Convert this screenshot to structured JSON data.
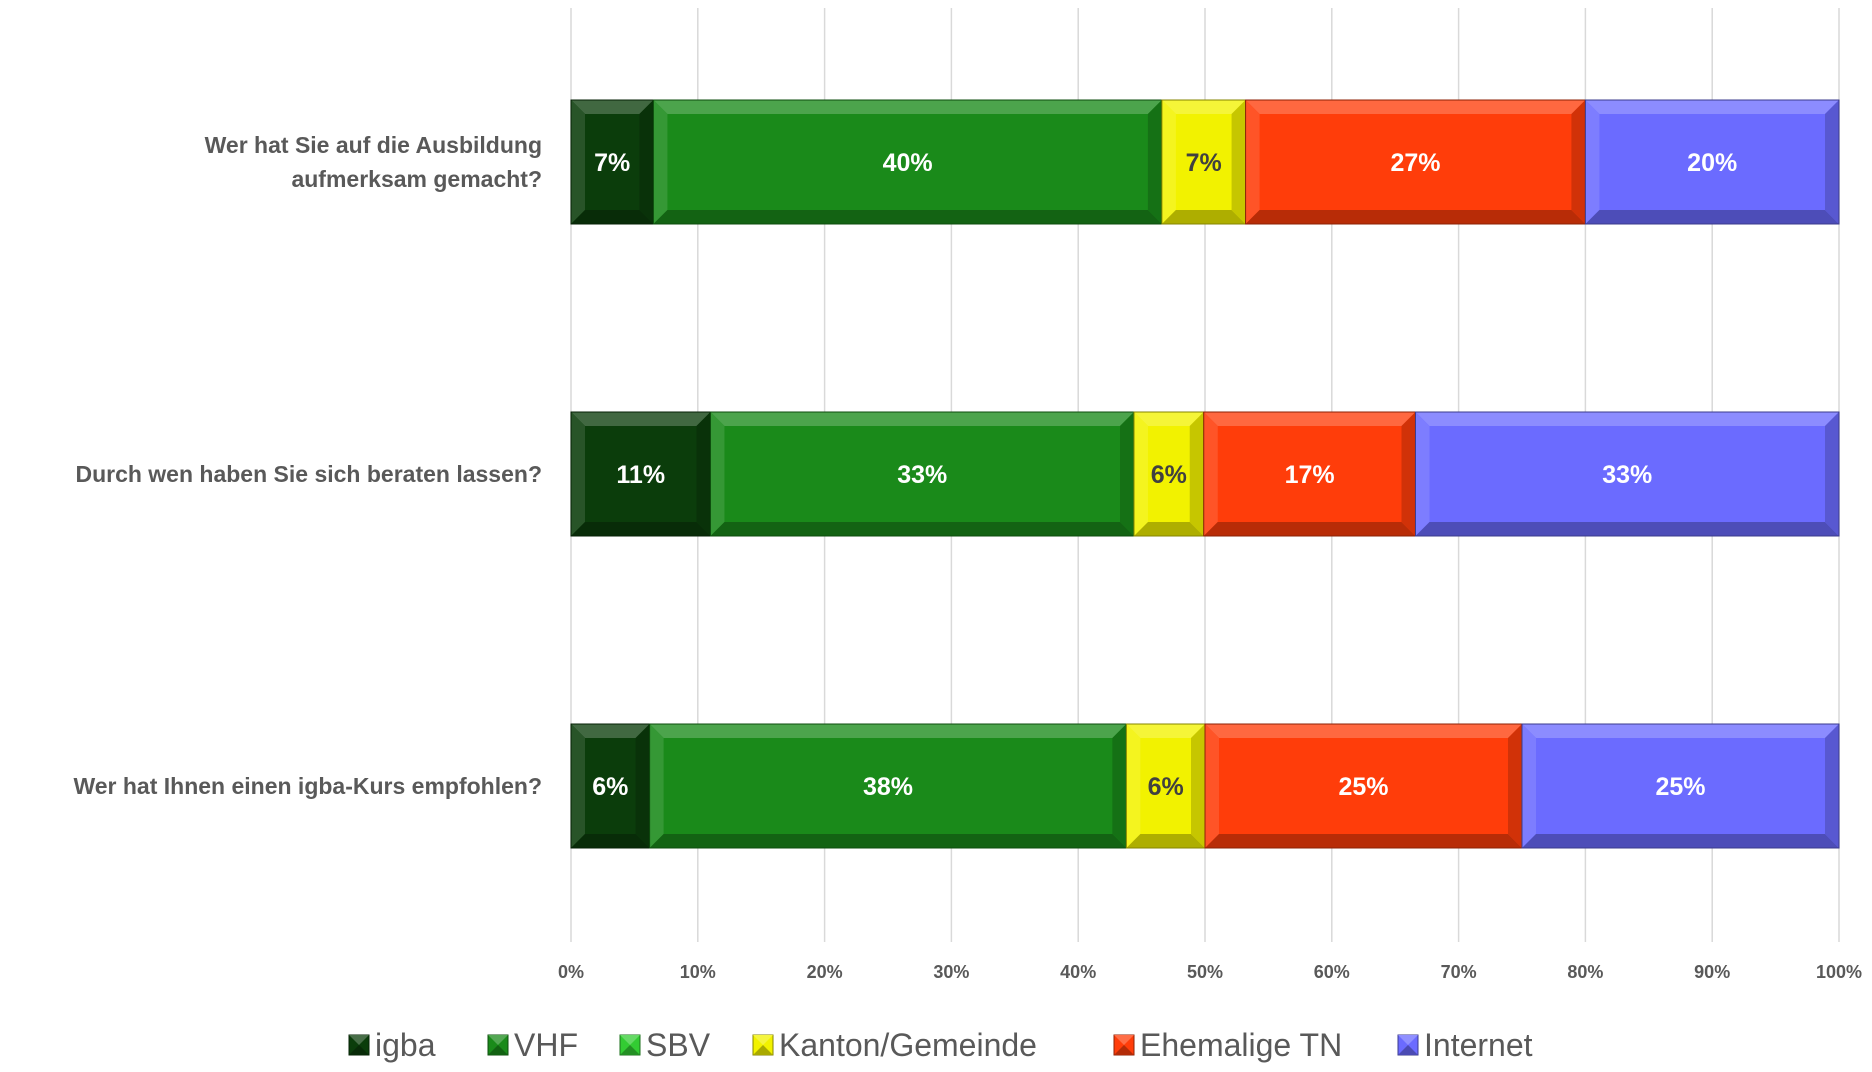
{
  "chart_data": {
    "type": "bar",
    "orientation": "horizontal",
    "stacked": "percent",
    "categories": [
      [
        "Wer hat Sie auf die Ausbildung",
        "aufmerksam gemacht?"
      ],
      [
        "Durch wen haben Sie sich beraten lassen?"
      ],
      [
        "Wer hat Ihnen einen igba-Kurs empfohlen?"
      ]
    ],
    "series": [
      {
        "name": "igba",
        "color": "#0b3d0b",
        "values": [
          6.5,
          11,
          6.2
        ],
        "labels": [
          "7%",
          "11%",
          "6%"
        ]
      },
      {
        "name": "VHF",
        "color": "#1a8a1a",
        "values": [
          40.1,
          33.4,
          37.6
        ],
        "labels": [
          "40%",
          "33%",
          "38%"
        ]
      },
      {
        "name": "SBV",
        "color": "#33cc33",
        "values": [
          0,
          0,
          0
        ],
        "labels": [
          "",
          "",
          ""
        ]
      },
      {
        "name": "Kanton/Gemeinde",
        "color": "#f2f200",
        "values": [
          6.6,
          5.5,
          6.2
        ],
        "labels": [
          "7%",
          "6%",
          "6%"
        ]
      },
      {
        "name": "Ehemalige TN",
        "color": "#ff3d0a",
        "values": [
          26.8,
          16.7,
          25
        ],
        "labels": [
          "27%",
          "17%",
          "25%"
        ]
      },
      {
        "name": "Internet",
        "color": "#6b6bff",
        "values": [
          20,
          33.4,
          25
        ],
        "labels": [
          "20%",
          "33%",
          "25%"
        ]
      }
    ],
    "x_ticks": [
      "0%",
      "10%",
      "20%",
      "30%",
      "40%",
      "50%",
      "60%",
      "70%",
      "80%",
      "90%",
      "100%"
    ],
    "xlim": [
      0,
      100
    ],
    "grid": "vertical",
    "legend": "bottom"
  }
}
